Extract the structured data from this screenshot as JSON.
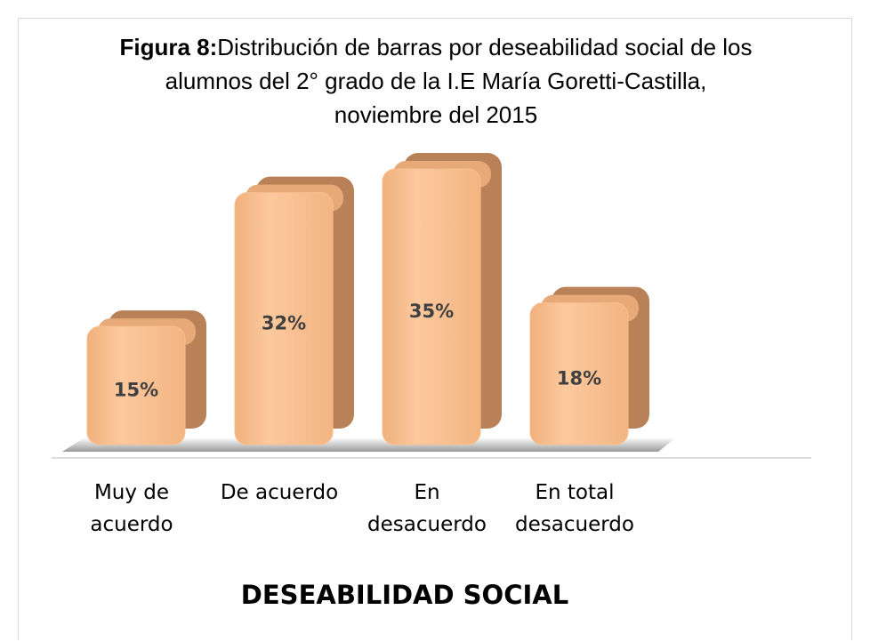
{
  "chart_data": {
    "type": "bar",
    "title_label": "Figura 8:",
    "title": "Distribución de barras por  deseabilidad social de los alumnos del 2° grado de la I.E María Goretti-Castilla, noviembre del 2015",
    "categories": [
      "Muy de acuerdo",
      "De acuerdo",
      "En desacuerdo",
      "En total desacuerdo"
    ],
    "values": [
      15,
      32,
      35,
      18
    ],
    "value_labels": [
      "15%",
      "32%",
      "35%",
      "18%"
    ],
    "color": "#f9c08e",
    "xlabel": "DESEABILIDAD SOCIAL"
  }
}
